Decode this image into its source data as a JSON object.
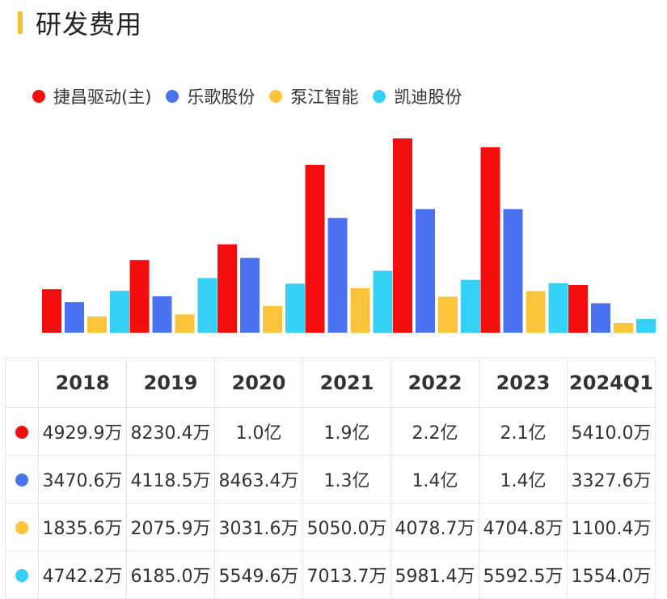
{
  "title": "研发费用",
  "colors": {
    "accent": "#f7c034"
  },
  "chart_data": {
    "type": "bar",
    "categories": [
      "2018",
      "2019",
      "2020",
      "2021",
      "2022",
      "2023",
      "2024Q1"
    ],
    "series": [
      {
        "name": "捷昌驱动(主)",
        "color": "#f40d0d",
        "values": [
          4929.9,
          8230.4,
          10000,
          19000,
          22000,
          21000,
          5410.0
        ],
        "labels": [
          "4929.9万",
          "8230.4万",
          "1.0亿",
          "1.9亿",
          "2.2亿",
          "2.1亿",
          "5410.0万"
        ]
      },
      {
        "name": "乐歌股份",
        "color": "#4a72f2",
        "values": [
          3470.6,
          4118.5,
          8463.4,
          13000,
          14000,
          14000,
          3327.6
        ],
        "labels": [
          "3470.6万",
          "4118.5万",
          "8463.4万",
          "1.3亿",
          "1.4亿",
          "1.4亿",
          "3327.6万"
        ]
      },
      {
        "name": "泵江智能",
        "color": "#fbc43a",
        "values": [
          1835.6,
          2075.9,
          3031.6,
          5050.0,
          4078.7,
          4704.8,
          1100.4
        ],
        "labels": [
          "1835.6万",
          "2075.9万",
          "3031.6万",
          "5050.0万",
          "4078.7万",
          "4704.8万",
          "1100.4万"
        ]
      },
      {
        "name": "凯迪股份",
        "color": "#35d0f5",
        "values": [
          4742.2,
          6185.0,
          5549.6,
          7013.7,
          5981.4,
          5592.5,
          1554.0
        ],
        "labels": [
          "4742.2万",
          "6185.0万",
          "5549.6万",
          "7013.7万",
          "5981.4万",
          "5592.5万",
          "1554.0万"
        ]
      }
    ],
    "legend_position": "top-left",
    "grid": false
  }
}
